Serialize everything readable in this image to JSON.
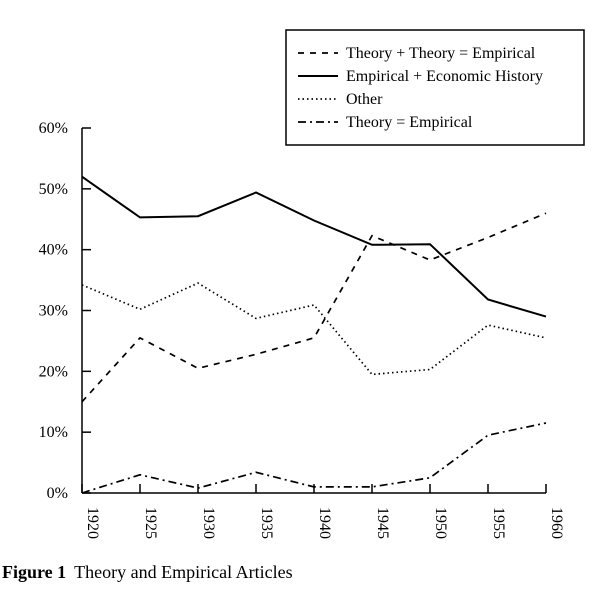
{
  "chart_data": {
    "type": "line",
    "title": "",
    "xlabel": "",
    "ylabel": "",
    "x": [
      "1920",
      "1925",
      "1930",
      "1935",
      "1940",
      "1945",
      "1950",
      "1955",
      "1960"
    ],
    "ylim": [
      0,
      60
    ],
    "yticks": [
      "0%",
      "10%",
      "20%",
      "30%",
      "40%",
      "50%",
      "60%"
    ],
    "grid": false,
    "legend_position": "top-right",
    "series": [
      {
        "name": "Theory + Theory = Empirical",
        "style": "dashed",
        "values": [
          15,
          25.5,
          20.5,
          22.8,
          25.5,
          42.3,
          38.3,
          42,
          46
        ]
      },
      {
        "name": "Empirical + Economic History",
        "style": "solid",
        "values": [
          52,
          45.3,
          45.5,
          49.4,
          44.8,
          40.8,
          40.9,
          31.8,
          29
        ]
      },
      {
        "name": "Other",
        "style": "dotted",
        "values": [
          34.2,
          30.2,
          34.5,
          28.7,
          30.9,
          19.5,
          20.3,
          27.6,
          25.5
        ]
      },
      {
        "name": "Theory = Empirical",
        "style": "dashdot",
        "values": [
          0,
          3,
          0.8,
          3.4,
          1,
          1,
          2.5,
          9.5,
          11.5
        ]
      }
    ]
  },
  "caption": {
    "figure_number": "Figure 1",
    "text": "Theory and Empirical Articles"
  }
}
